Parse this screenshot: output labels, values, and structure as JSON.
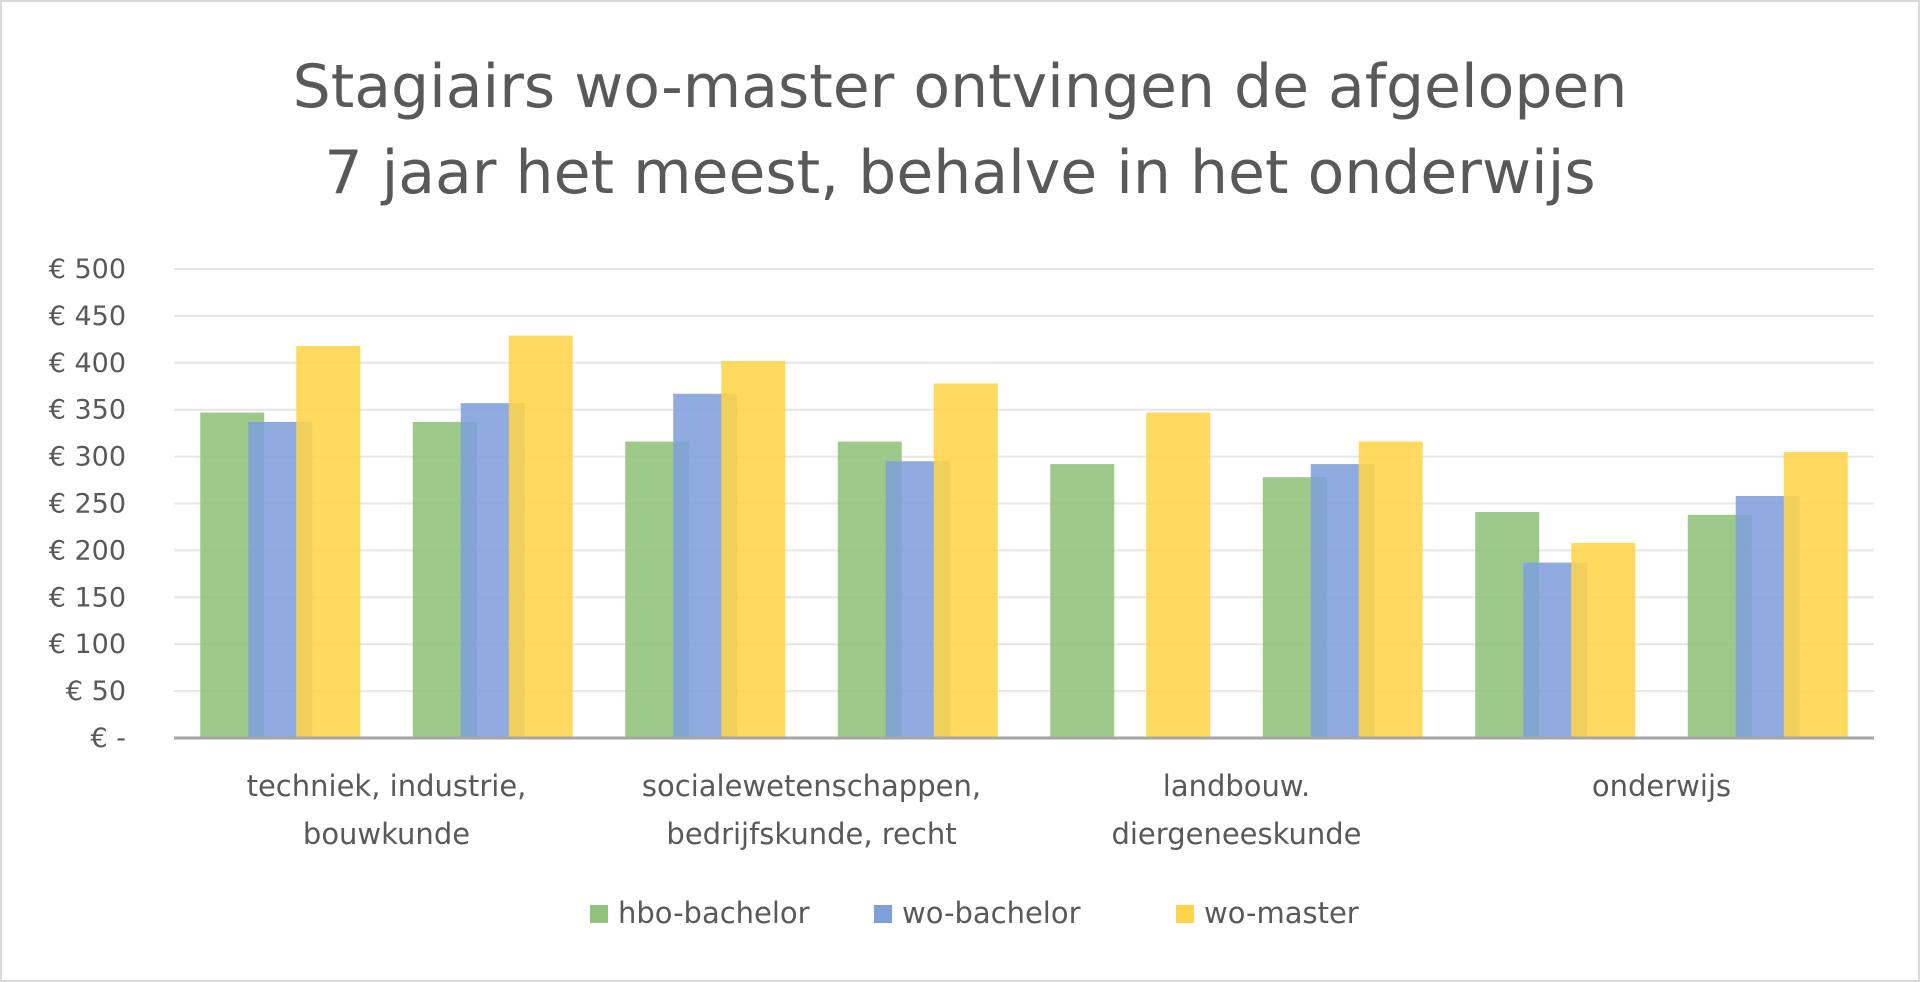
{
  "chart_data": {
    "type": "bar",
    "title_lines": [
      "Stagiairs wo-master ontvingen de afgelopen",
      "7 jaar het meest, behalve in het onderwijs"
    ],
    "xlabel": "",
    "ylabel": "",
    "ylim": [
      0,
      500
    ],
    "y_ticks": [
      0,
      50,
      100,
      150,
      200,
      250,
      300,
      350,
      400,
      450,
      500
    ],
    "y_tick_labels": [
      "€ -",
      "€ 50",
      "€ 100",
      "€ 150",
      "€ 200",
      "€ 250",
      "€ 300",
      "€ 350",
      "€ 400",
      "€ 450",
      "€ 500"
    ],
    "grid": true,
    "legend_position": "bottom",
    "categories": [
      "techniek, industrie, bouwkunde",
      "",
      "sociale wetenschappen, bedrijfskunde, recht",
      "",
      "landbouw. diergeneeskunde",
      "",
      "onderwijs",
      ""
    ],
    "category_label_lines": [
      [
        "techniek, industrie,",
        "bouwkunde"
      ],
      [],
      [
        "socialewetenschappen,",
        "bedrijfskunde, recht"
      ],
      [],
      [
        "landbouw.",
        "diergeneeskunde"
      ],
      [],
      [
        "onderwijs"
      ],
      []
    ],
    "series": [
      {
        "name": "hbo-bachelor",
        "color": "#8fc27a",
        "values": [
          347,
          337,
          316,
          316,
          292,
          278,
          241,
          238
        ]
      },
      {
        "name": "wo-bachelor",
        "color": "#7f9fdb",
        "values": [
          337,
          357,
          367,
          295,
          null,
          292,
          187,
          258
        ]
      },
      {
        "name": "wo-master",
        "color": "#ffd44a",
        "values": [
          418,
          429,
          402,
          378,
          347,
          316,
          208,
          305
        ]
      }
    ]
  }
}
